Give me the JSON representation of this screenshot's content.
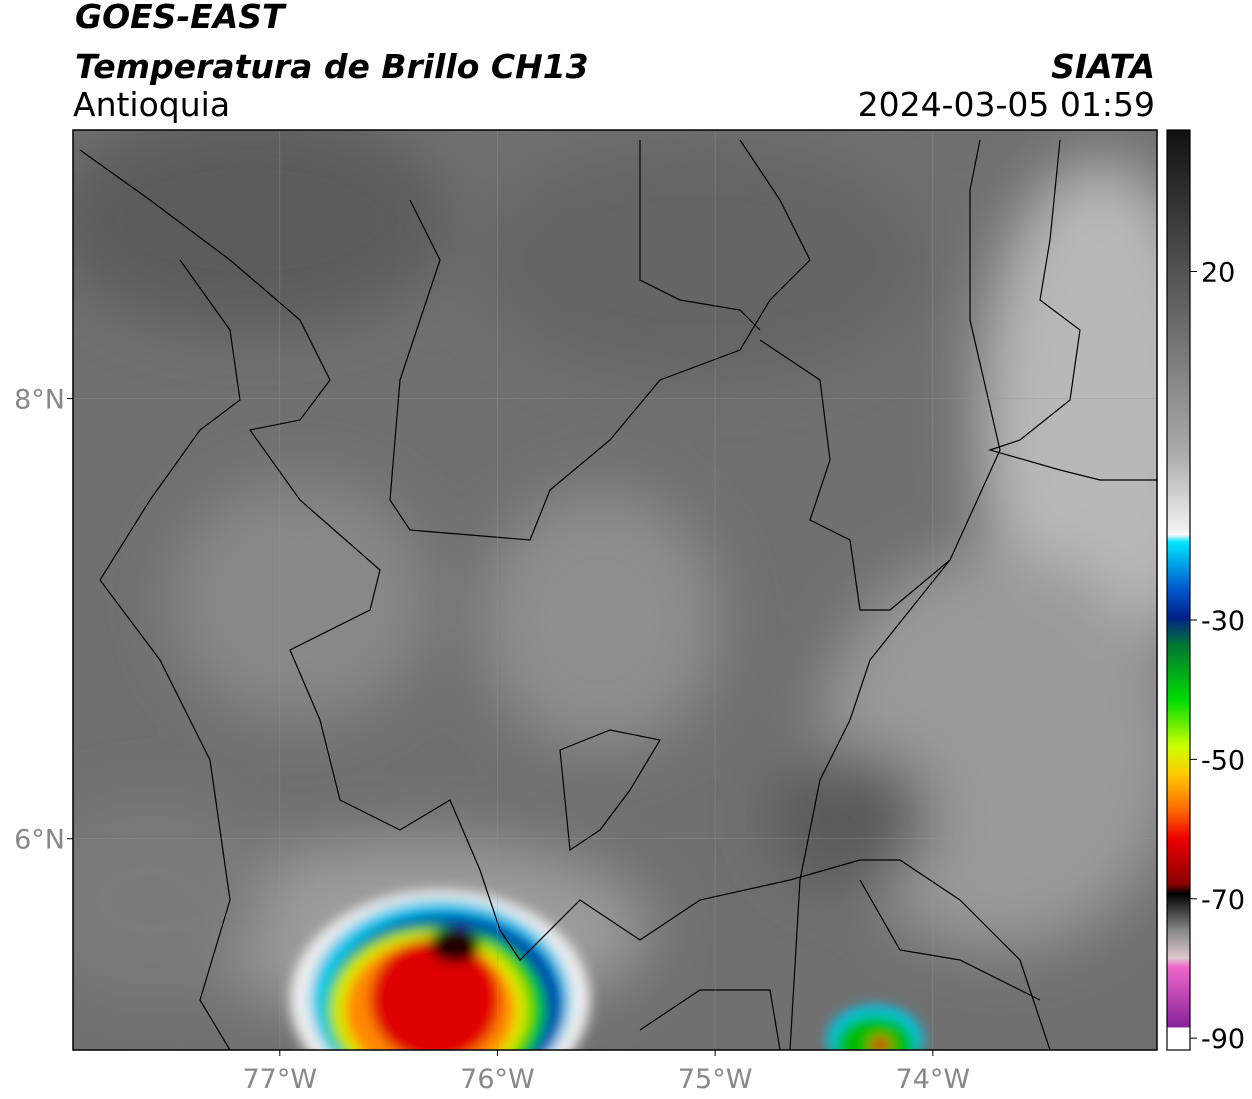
{
  "header": {
    "title": "GOES-EAST",
    "subtitle": "Temperatura de Brillo CH13",
    "region": "Antioquia",
    "source": "SIATA",
    "datetime": "2024-03-05 01:59"
  },
  "map": {
    "xlim": [
      -77.95,
      -72.97
    ],
    "ylim": [
      5.04,
      9.22
    ],
    "xticks": [
      {
        "value": -77,
        "label": "77°W"
      },
      {
        "value": -76,
        "label": "76°W"
      },
      {
        "value": -75,
        "label": "75°W"
      },
      {
        "value": -74,
        "label": "74°W"
      }
    ],
    "yticks": [
      {
        "value": 6,
        "label": "6°N"
      },
      {
        "value": 8,
        "label": "8°N"
      }
    ],
    "grid": true
  },
  "colorbar": {
    "lim": [
      -91.7,
      40.3
    ],
    "ticks": [
      20,
      -30,
      -50,
      -70,
      -90
    ]
  }
}
